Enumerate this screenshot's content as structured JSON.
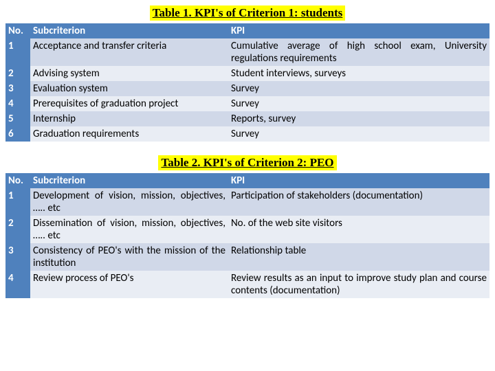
{
  "colors": {
    "header_bg": "#4f81bd",
    "header_text": "#ffffff",
    "row_odd_bg": "#d0d8e8",
    "row_even_bg": "#e9edf4",
    "title_highlight": "#ffff00",
    "page_bg": "#ffffff"
  },
  "typography": {
    "body_font": "Calibri",
    "title_font": "Times New Roman",
    "body_size_pt": 11,
    "title_size_pt": 13,
    "title_weight": "bold"
  },
  "table1": {
    "title": "Table 1. KPI's of Criterion 1: students",
    "columns": [
      "No.",
      "Subcriterion",
      "KPI"
    ],
    "rows": [
      {
        "no": "1",
        "sub": "Acceptance and transfer criteria",
        "kpi": "Cumulative average of high school exam, University regulations requirements"
      },
      {
        "no": "2",
        "sub": "Advising system",
        "kpi": "Student interviews, surveys"
      },
      {
        "no": "3",
        "sub": "Evaluation system",
        "kpi": "Survey"
      },
      {
        "no": "4",
        "sub": "Prerequisites of graduation project",
        "kpi": "Survey"
      },
      {
        "no": "5",
        "sub": "Internship",
        "kpi": "Reports, survey"
      },
      {
        "no": "6",
        "sub": "Graduation requirements",
        "kpi": "Survey"
      }
    ]
  },
  "table2": {
    "title": "Table 2. KPI's of Criterion 2: PEO",
    "columns": [
      "No.",
      "Subcriterion",
      "KPI"
    ],
    "rows": [
      {
        "no": "1",
        "sub": "Development of vision, mission, objectives, ….. etc",
        "kpi": "Participation of stakeholders (documentation)"
      },
      {
        "no": "2",
        "sub": "Dissemination of vision, mission, objectives, ….. etc",
        "kpi": "No. of the web site visitors"
      },
      {
        "no": "3",
        "sub": "Consistency of PEO's with the mission of the institution",
        "kpi": "Relationship table"
      },
      {
        "no": "4",
        "sub": "Review process of PEO's",
        "kpi": "Review results as an input to improve study plan and course contents (documentation)"
      }
    ]
  }
}
